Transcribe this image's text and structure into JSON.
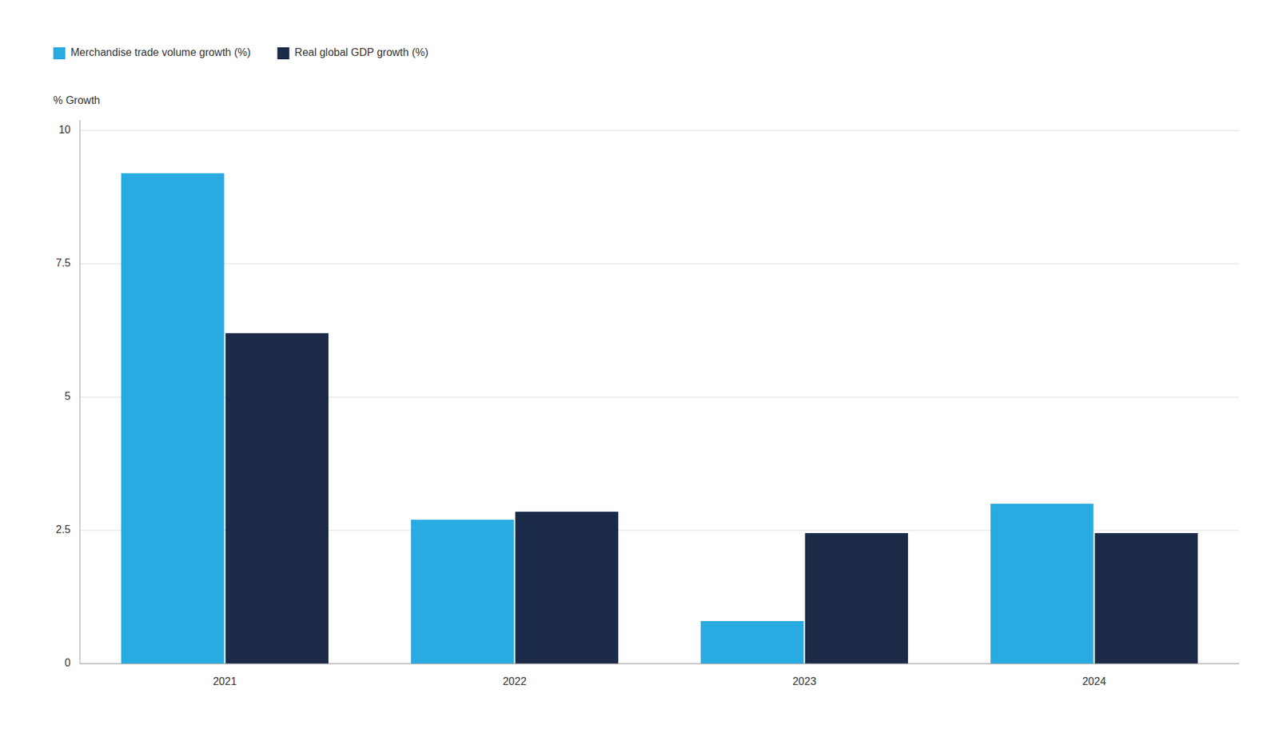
{
  "chart_data": {
    "type": "bar",
    "categories": [
      "2021",
      "2022",
      "2023",
      "2024"
    ],
    "series": [
      {
        "name": "Merchandise trade volume growth (%)",
        "color": "#29ABE2",
        "values": [
          9.2,
          2.7,
          0.8,
          3.0
        ]
      },
      {
        "name": "Real global GDP growth (%)",
        "color": "#1B2A47",
        "values": [
          6.2,
          2.85,
          2.45,
          2.45
        ]
      }
    ],
    "y_label": "% Growth",
    "ylim": [
      0,
      10.2
    ],
    "yticks": [
      0,
      2.5,
      5,
      7.5,
      10
    ],
    "grid": true,
    "legend": "top-left"
  }
}
